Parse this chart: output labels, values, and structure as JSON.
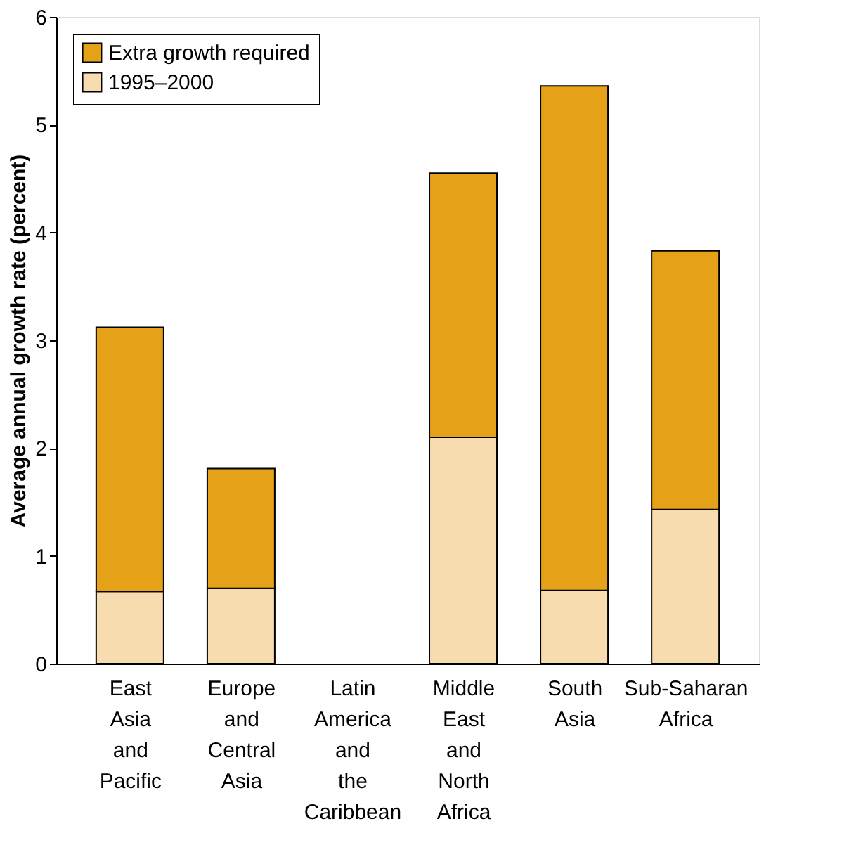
{
  "chart_data": {
    "type": "bar",
    "stacked": true,
    "ylabel": "Average annual growth rate (percent)",
    "categories": [
      "East Asia and Pacific",
      "Europe and Central Asia",
      "Latin America and the Caribbean",
      "Middle East and North Africa",
      "South Asia",
      "Sub-Saharan Africa"
    ],
    "series": [
      {
        "name": "1995–2000",
        "color": "#f7dcaf",
        "values": [
          0.67,
          0.7,
          null,
          2.1,
          0.68,
          1.43
        ]
      },
      {
        "name": "Extra growth required",
        "color": "#e5a117",
        "values": [
          2.45,
          1.11,
          null,
          2.45,
          4.68,
          2.4
        ]
      }
    ],
    "ylim": [
      0,
      6
    ],
    "yticks": [
      0,
      1,
      2,
      3,
      4,
      5,
      6
    ],
    "grid": false,
    "legend": "top left"
  }
}
